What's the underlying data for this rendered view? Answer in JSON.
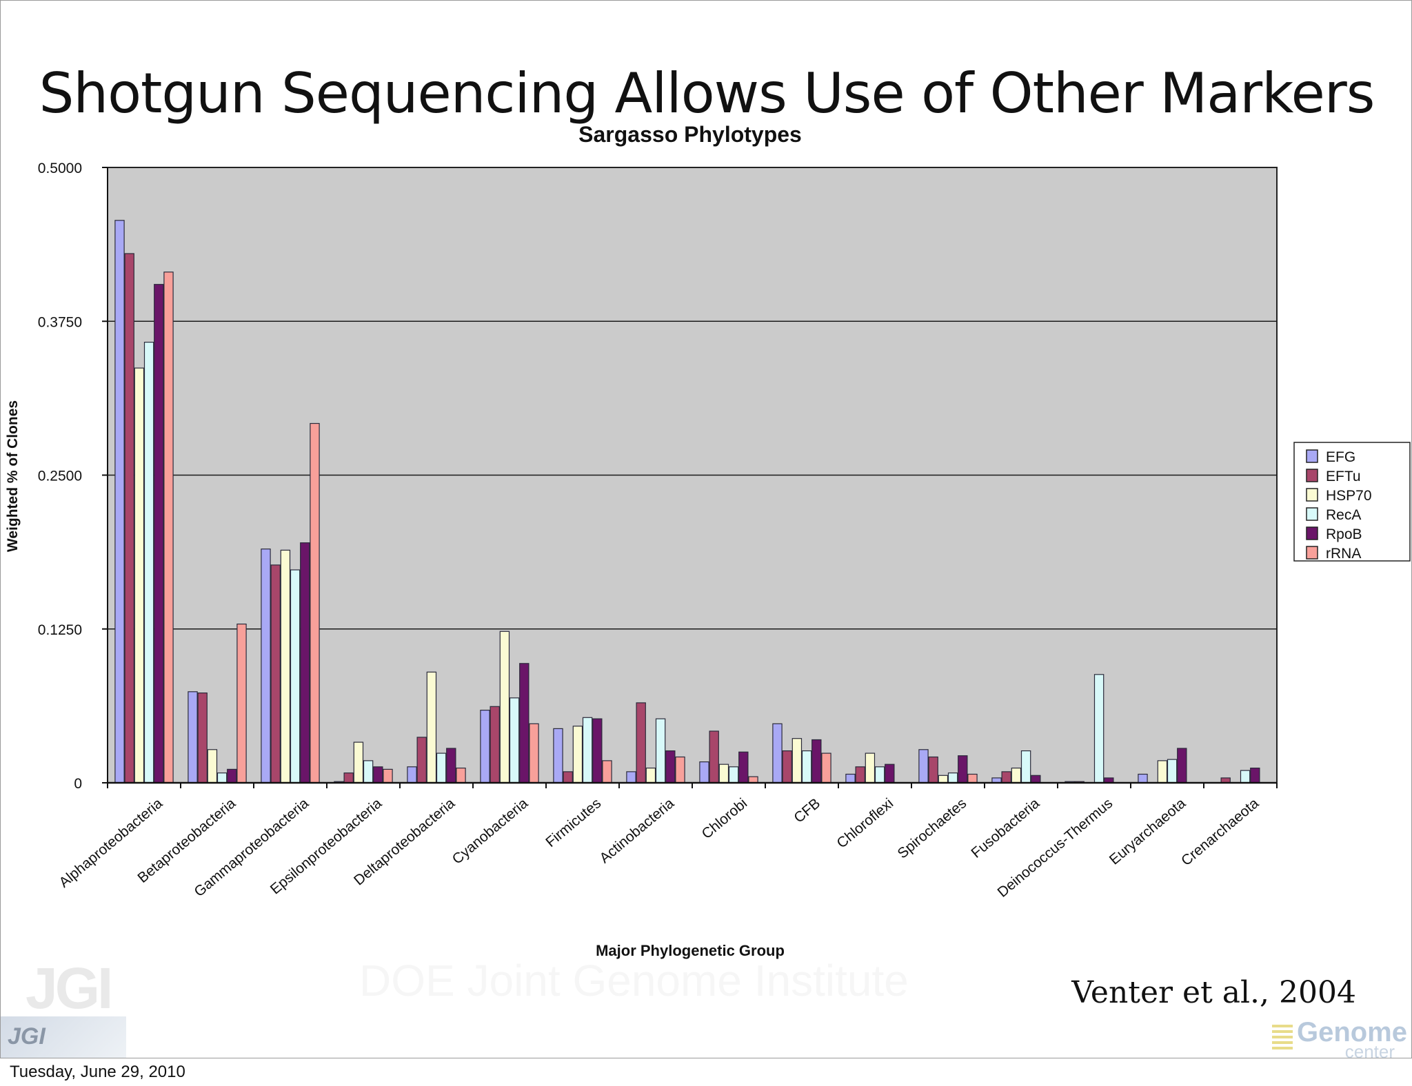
{
  "slide": {
    "title": "Shotgun Sequencing Allows Use of Other Markers",
    "citation": "Venter et al., 2004",
    "date": "Tuesday, June 29, 2010",
    "jgi_logo": "JGI",
    "jgi_bg_text": "DOE Joint Genome Institute",
    "genome_logo": "Genome",
    "genome_logo_sub": "center"
  },
  "chart_data": {
    "type": "bar",
    "title": "Sargasso Phylotypes",
    "xlabel": "Major Phylogenetic Group",
    "ylabel": "Weighted % of Clones",
    "ylim": [
      0,
      0.5
    ],
    "yticks": [
      0,
      0.125,
      0.25,
      0.375,
      0.5
    ],
    "ytick_labels": [
      "0",
      "0.1250",
      "0.2500",
      "0.3750",
      "0.5000"
    ],
    "grid": true,
    "legend_position": "right",
    "categories": [
      "Alphaproteobacteria",
      "Betaproteobacteria",
      "Gammaproteobacteria",
      "Epsilonproteobacteria",
      "Deltaproteobacteria",
      "Cyanobacteria",
      "Firmicutes",
      "Actinobacteria",
      "Chlorobi",
      "CFB",
      "Chloroflexi",
      "Spirochaetes",
      "Fusobacteria",
      "Deinococcus-Thermus",
      "Euryarchaeota",
      "Crenarchaeota"
    ],
    "series": [
      {
        "name": "EFG",
        "color": "#a9a9f5",
        "values": [
          0.457,
          0.074,
          0.19,
          0.001,
          0.013,
          0.059,
          0.044,
          0.009,
          0.017,
          0.048,
          0.007,
          0.027,
          0.004,
          0.001,
          0.007,
          0.0
        ]
      },
      {
        "name": "EFTu",
        "color": "#a8466a",
        "values": [
          0.43,
          0.073,
          0.177,
          0.008,
          0.037,
          0.062,
          0.009,
          0.065,
          0.042,
          0.026,
          0.013,
          0.021,
          0.009,
          0.001,
          0.0,
          0.004
        ]
      },
      {
        "name": "HSP70",
        "color": "#fbfbd3",
        "values": [
          0.337,
          0.027,
          0.189,
          0.033,
          0.09,
          0.123,
          0.046,
          0.012,
          0.015,
          0.036,
          0.024,
          0.006,
          0.012,
          0.0,
          0.018,
          0.0
        ]
      },
      {
        "name": "RecA",
        "color": "#d8f9f9",
        "values": [
          0.358,
          0.008,
          0.173,
          0.018,
          0.024,
          0.069,
          0.053,
          0.052,
          0.013,
          0.026,
          0.013,
          0.008,
          0.026,
          0.088,
          0.019,
          0.01
        ]
      },
      {
        "name": "RpoB",
        "color": "#6a1568",
        "values": [
          0.405,
          0.011,
          0.195,
          0.013,
          0.028,
          0.097,
          0.052,
          0.026,
          0.025,
          0.035,
          0.015,
          0.022,
          0.006,
          0.004,
          0.028,
          0.012
        ]
      },
      {
        "name": "rRNA",
        "color": "#f8a09a",
        "values": [
          0.415,
          0.129,
          0.292,
          0.011,
          0.012,
          0.048,
          0.018,
          0.021,
          0.005,
          0.024,
          0.0,
          0.007,
          0.0,
          0.0,
          0.0,
          0.0
        ]
      }
    ]
  }
}
